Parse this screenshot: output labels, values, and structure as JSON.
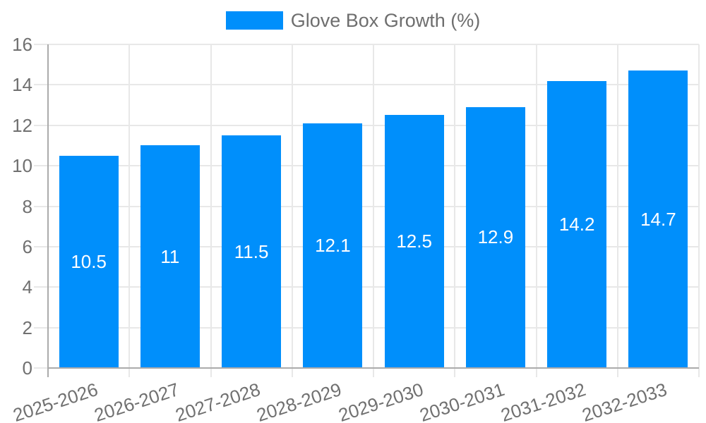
{
  "legend": {
    "label": "Glove Box Growth (%)"
  },
  "colors": {
    "bar": "#008FFB",
    "grid": "#e8e8e8",
    "axis": "#ababab",
    "text": "#707070",
    "value_label": "#ffffff"
  },
  "chart_data": {
    "type": "bar",
    "title": "",
    "xlabel": "",
    "ylabel": "",
    "legend_position": "top",
    "grid": true,
    "series_name": "Glove Box Growth (%)",
    "categories": [
      "2025-2026",
      "2026-2027",
      "2027-2028",
      "2028-2029",
      "2029-2030",
      "2030-2031",
      "2031-2032",
      "2032-2033"
    ],
    "values": [
      10.5,
      11,
      11.5,
      12.1,
      12.5,
      12.9,
      14.2,
      14.7
    ],
    "data_labels": [
      "10.5",
      "11",
      "11.5",
      "12.1",
      "12.5",
      "12.9",
      "14.2",
      "14.7"
    ],
    "ylim": [
      0,
      16
    ],
    "yticks": [
      0,
      2,
      4,
      6,
      8,
      10,
      12,
      14,
      16
    ],
    "ytick_labels": [
      "0",
      "2",
      "4",
      "6",
      "8",
      "10",
      "12",
      "14",
      "16"
    ]
  }
}
